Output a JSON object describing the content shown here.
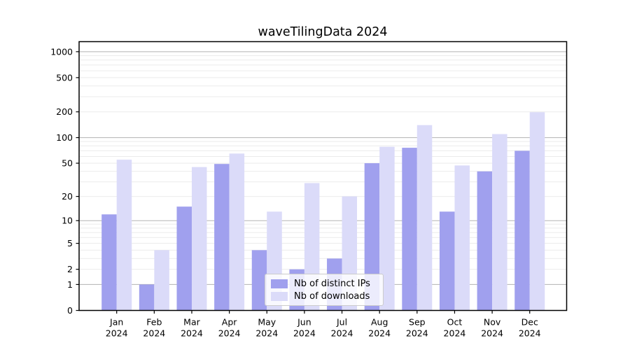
{
  "chart_data": {
    "type": "bar",
    "title": "waveTilingData 2024",
    "categories": [
      "Jan",
      "Feb",
      "Mar",
      "Apr",
      "May",
      "Jun",
      "Jul",
      "Aug",
      "Sep",
      "Oct",
      "Nov",
      "Dec"
    ],
    "category_year": "2024",
    "series": [
      {
        "name": "Nb of distinct IPs",
        "color": "#a0a0ee",
        "values": [
          12,
          1,
          15,
          49,
          4,
          2,
          3,
          50,
          76,
          13,
          40,
          70
        ]
      },
      {
        "name": "Nb of downloads",
        "color": "#dbdbf9",
        "values": [
          55,
          4,
          45,
          65,
          13,
          29,
          20,
          78,
          140,
          47,
          110,
          198
        ]
      }
    ],
    "y_ticks": [
      0,
      1,
      2,
      5,
      10,
      20,
      50,
      100,
      200,
      500,
      1000
    ],
    "y_scale": "pseudo-log: y = log10(1+x)",
    "ylim": [
      0,
      1315
    ],
    "xlabel": "",
    "ylabel": "",
    "grid": "horizontal major (powers of 10) + minor",
    "legend_position": "inside, lower center"
  },
  "colors": {
    "background": "#ffffff",
    "axis": "#000000",
    "grid_major": "#b3b3b3",
    "grid_minor": "#ebebeb",
    "legend_border": "#cccccc"
  }
}
